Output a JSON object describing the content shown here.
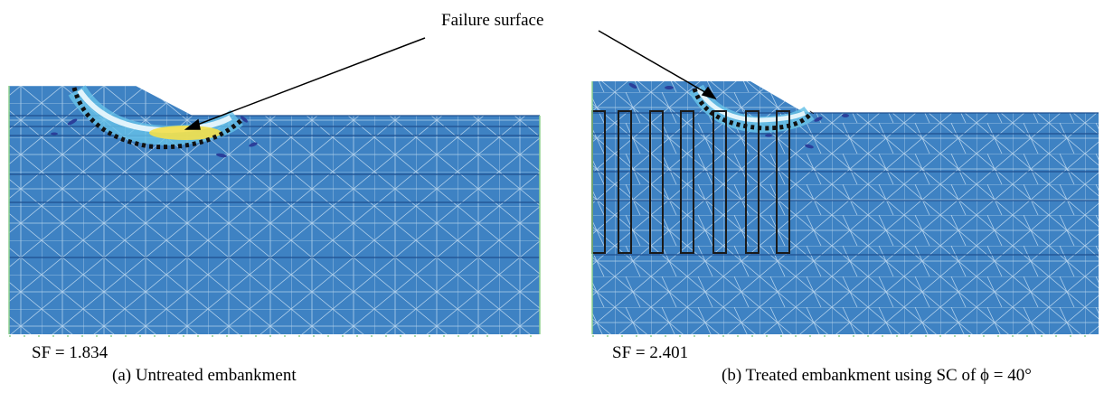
{
  "callout_label": "Failure surface",
  "panel_a": {
    "safety_factor": "SF = 1.834",
    "caption": "(a) Untreated embankment",
    "colors": {
      "soil": "#3e82c3",
      "mesh": "#d6e9f8",
      "layer_line": "#1f4f8f",
      "shear_band_outer": "#67c2e8",
      "shear_band_inner": "#e8f7fc",
      "shear_band_peak": "#f4e04a"
    }
  },
  "panel_b": {
    "safety_factor": "SF = 2.401",
    "caption": "(b) Treated embankment using SC of ϕ = 40°",
    "colors": {
      "soil": "#3e82c3",
      "mesh": "#d6e9f8",
      "layer_line": "#1f4f8f",
      "column_outline": "#1a1a1a"
    }
  },
  "failure_line_color": "#111111",
  "support_marker_color": "#8fd18f"
}
